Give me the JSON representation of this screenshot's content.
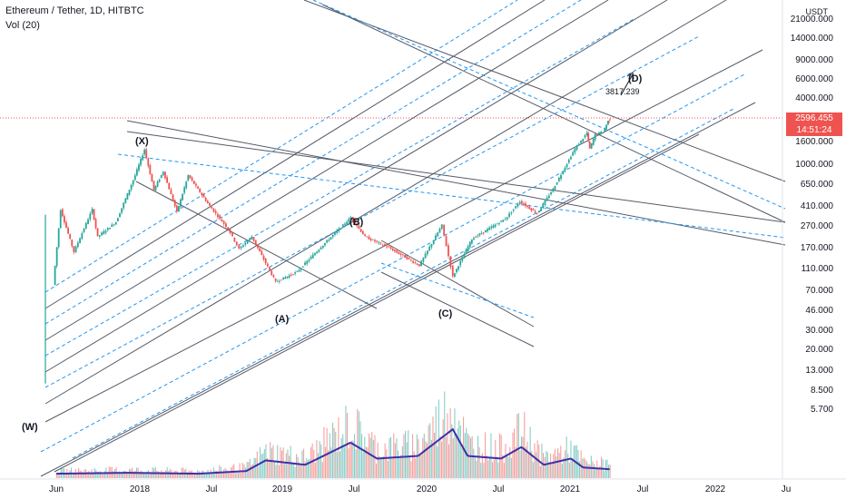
{
  "header": {
    "title": "Ethereum / Tether, 1D, HITBTC",
    "volume_label": "Vol (20)"
  },
  "price_axis": {
    "currency": "USDT",
    "ticks": [
      "21000.000",
      "14000.000",
      "9000.000",
      "6000.000",
      "4000.000",
      "2596.455",
      "1600.000",
      "1000.000",
      "650.000",
      "410.000",
      "270.000",
      "170.000",
      "110.000",
      "70.000",
      "46.000",
      "30.000",
      "20.000",
      "13.000",
      "8.500",
      "5.700"
    ]
  },
  "current_price": {
    "value": "2596.455",
    "countdown": "14:51:24",
    "color": "#ef5350"
  },
  "time_axis": {
    "ticks": [
      "Jun",
      "2018",
      "Jul",
      "2019",
      "Jul",
      "2020",
      "Jul",
      "2021",
      "Jul",
      "2022",
      "Ju"
    ]
  },
  "annotations": {
    "waves": [
      "(W)",
      "(X)",
      "(A)",
      "(B)",
      "(C)",
      "(D)"
    ],
    "target": "3817.239"
  },
  "chart_data": {
    "type": "line",
    "scale": "log",
    "ylim": [
      5.7,
      21000
    ],
    "price_points": [
      {
        "date": "2017-05-24",
        "price": 80
      },
      {
        "date": "2017-06-12",
        "price": 390
      },
      {
        "date": "2017-07-16",
        "price": 160
      },
      {
        "date": "2017-09-01",
        "price": 390
      },
      {
        "date": "2017-09-15",
        "price": 220
      },
      {
        "date": "2017-11-01",
        "price": 300
      },
      {
        "date": "2017-12-20",
        "price": 800
      },
      {
        "date": "2018-01-13",
        "price": 1380
      },
      {
        "date": "2018-02-06",
        "price": 590
      },
      {
        "date": "2018-03-02",
        "price": 870
      },
      {
        "date": "2018-04-06",
        "price": 370
      },
      {
        "date": "2018-05-05",
        "price": 800
      },
      {
        "date": "2018-06-29",
        "price": 420
      },
      {
        "date": "2018-08-15",
        "price": 260
      },
      {
        "date": "2018-09-12",
        "price": 170
      },
      {
        "date": "2018-10-15",
        "price": 220
      },
      {
        "date": "2018-12-15",
        "price": 85
      },
      {
        "date": "2019-02-08",
        "price": 105
      },
      {
        "date": "2019-04-05",
        "price": 170
      },
      {
        "date": "2019-06-26",
        "price": 330
      },
      {
        "date": "2019-08-01",
        "price": 220
      },
      {
        "date": "2019-10-01",
        "price": 175
      },
      {
        "date": "2019-12-18",
        "price": 120
      },
      {
        "date": "2020-02-14",
        "price": 280
      },
      {
        "date": "2020-03-13",
        "price": 95
      },
      {
        "date": "2020-05-01",
        "price": 210
      },
      {
        "date": "2020-07-25",
        "price": 320
      },
      {
        "date": "2020-09-01",
        "price": 460
      },
      {
        "date": "2020-10-15",
        "price": 360
      },
      {
        "date": "2020-11-25",
        "price": 600
      },
      {
        "date": "2021-01-20",
        "price": 1400
      },
      {
        "date": "2021-02-20",
        "price": 1950
      },
      {
        "date": "2021-02-27",
        "price": 1400
      },
      {
        "date": "2021-03-13",
        "price": 1900
      },
      {
        "date": "2021-04-02",
        "price": 2000
      },
      {
        "date": "2021-04-15",
        "price": 2500
      },
      {
        "date": "2021-04-20",
        "price": 2596
      }
    ],
    "volume_profile": [
      {
        "date": "2017-06-01",
        "level": 0.05
      },
      {
        "date": "2017-12-01",
        "level": 0.06
      },
      {
        "date": "2018-06-01",
        "level": 0.05
      },
      {
        "date": "2018-10-01",
        "level": 0.08
      },
      {
        "date": "2018-11-20",
        "level": 0.2
      },
      {
        "date": "2019-03-01",
        "level": 0.15
      },
      {
        "date": "2019-06-25",
        "level": 0.4
      },
      {
        "date": "2019-09-01",
        "level": 0.22
      },
      {
        "date": "2019-12-15",
        "level": 0.25
      },
      {
        "date": "2020-03-13",
        "level": 0.55
      },
      {
        "date": "2020-04-20",
        "level": 0.25
      },
      {
        "date": "2020-07-15",
        "level": 0.22
      },
      {
        "date": "2020-09-05",
        "level": 0.35
      },
      {
        "date": "2020-11-01",
        "level": 0.15
      },
      {
        "date": "2021-01-10",
        "level": 0.22
      },
      {
        "date": "2021-02-10",
        "level": 0.12
      },
      {
        "date": "2021-04-20",
        "level": 0.1
      }
    ]
  }
}
